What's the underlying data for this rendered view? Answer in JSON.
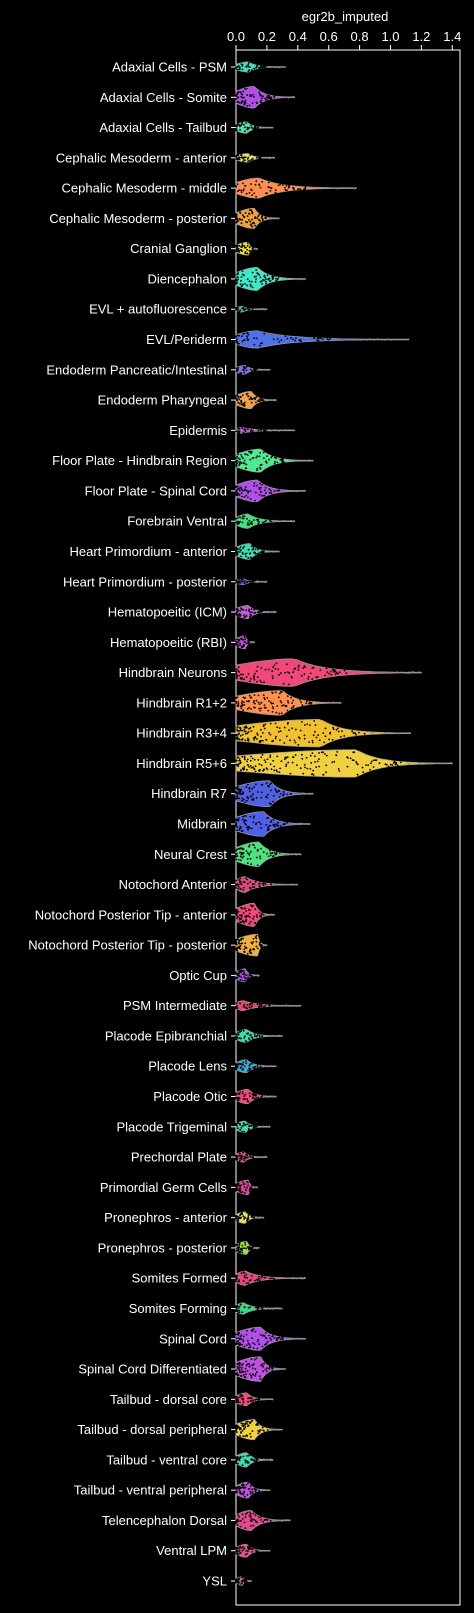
{
  "chart_data": {
    "type": "violin",
    "orientation": "horizontal",
    "xlabel": "egr2b_imputed",
    "xlim": [
      0,
      1.45
    ],
    "xticks": [
      "0.0",
      "0.2",
      "0.4",
      "0.6",
      "0.8",
      "1.0",
      "1.2",
      "1.4"
    ],
    "xtick_values": [
      0,
      0.2,
      0.4,
      0.6,
      0.8,
      1.0,
      1.2,
      1.4
    ],
    "categories": [
      {
        "name": "Adaxial Cells - PSM",
        "max": 0.32,
        "width": 0.35,
        "spread": 0.08,
        "color": "#40e0c0"
      },
      {
        "name": "Adaxial Cells - Somite",
        "max": 0.38,
        "width": 0.75,
        "spread": 0.12,
        "color": "#b050e8"
      },
      {
        "name": "Adaxial Cells - Tailbud",
        "max": 0.24,
        "width": 0.4,
        "spread": 0.07,
        "color": "#50e0a0"
      },
      {
        "name": "Cephalic Mesoderm - anterior",
        "max": 0.25,
        "width": 0.3,
        "spread": 0.08,
        "color": "#e8e070"
      },
      {
        "name": "Cephalic Mesoderm - middle",
        "max": 0.78,
        "width": 0.7,
        "spread": 0.15,
        "color": "#ff8c50"
      },
      {
        "name": "Cephalic Mesoderm - posterior",
        "max": 0.28,
        "width": 0.7,
        "spread": 0.12,
        "color": "#f0a040"
      },
      {
        "name": "Cranial Ganglion",
        "max": 0.14,
        "width": 0.45,
        "spread": 0.08,
        "color": "#e8e040"
      },
      {
        "name": "Diencephalon",
        "max": 0.45,
        "width": 0.8,
        "spread": 0.14,
        "color": "#40e8c8"
      },
      {
        "name": "EVL + autofluorescence",
        "max": 0.2,
        "width": 0.2,
        "spread": 0.04,
        "color": "#40c090"
      },
      {
        "name": "EVL/Periderm",
        "max": 1.12,
        "width": 0.6,
        "spread": 0.14,
        "color": "#5070e8"
      },
      {
        "name": "Endoderm Pancreatic/Intestinal",
        "max": 0.22,
        "width": 0.3,
        "spread": 0.06,
        "color": "#8070e8"
      },
      {
        "name": "Endoderm Pharyngeal",
        "max": 0.26,
        "width": 0.6,
        "spread": 0.1,
        "color": "#f0a050"
      },
      {
        "name": "Epidermis",
        "max": 0.38,
        "width": 0.2,
        "spread": 0.04,
        "color": "#c060e0"
      },
      {
        "name": "Floor Plate - Hindbrain Region",
        "max": 0.5,
        "width": 0.8,
        "spread": 0.16,
        "color": "#50e890"
      },
      {
        "name": "Floor Plate - Spinal Cord",
        "max": 0.45,
        "width": 0.75,
        "spread": 0.14,
        "color": "#b050e8"
      },
      {
        "name": "Forebrain Ventral",
        "max": 0.38,
        "width": 0.5,
        "spread": 0.08,
        "color": "#40e080"
      },
      {
        "name": "Heart Primordium - anterior",
        "max": 0.28,
        "width": 0.55,
        "spread": 0.09,
        "color": "#40d8b0"
      },
      {
        "name": "Heart Primordium - posterior",
        "max": 0.2,
        "width": 0.2,
        "spread": 0.05,
        "color": "#4050c0"
      },
      {
        "name": "Hematopoeitic (ICM)",
        "max": 0.26,
        "width": 0.45,
        "spread": 0.08,
        "color": "#c060d8"
      },
      {
        "name": "Hematopoeitic (RBI)",
        "max": 0.12,
        "width": 0.45,
        "spread": 0.06,
        "color": "#c050e0"
      },
      {
        "name": "Hindbrain Neurons",
        "max": 1.2,
        "width": 0.95,
        "spread": 0.38,
        "color": "#f04878"
      },
      {
        "name": "Hindbrain R1+2",
        "max": 0.68,
        "width": 0.85,
        "spread": 0.3,
        "color": "#ff9050"
      },
      {
        "name": "Hindbrain R3+4",
        "max": 1.13,
        "width": 0.95,
        "spread": 0.55,
        "color": "#f0c030"
      },
      {
        "name": "Hindbrain R5+6",
        "max": 1.4,
        "width": 0.95,
        "spread": 0.78,
        "color": "#f0d040"
      },
      {
        "name": "Hindbrain R7",
        "max": 0.5,
        "width": 0.9,
        "spread": 0.22,
        "color": "#5060e0"
      },
      {
        "name": "Midbrain",
        "max": 0.48,
        "width": 0.85,
        "spread": 0.18,
        "color": "#5060e8"
      },
      {
        "name": "Neural Crest",
        "max": 0.42,
        "width": 0.85,
        "spread": 0.15,
        "color": "#50e080"
      },
      {
        "name": "Notochord Anterior",
        "max": 0.4,
        "width": 0.55,
        "spread": 0.06,
        "color": "#e04880"
      },
      {
        "name": "Notochord Posterior Tip - anterior",
        "max": 0.25,
        "width": 0.8,
        "spread": 0.12,
        "color": "#f04878"
      },
      {
        "name": "Notochord Posterior Tip - posterior",
        "max": 0.2,
        "width": 0.75,
        "spread": 0.14,
        "color": "#f0b040"
      },
      {
        "name": "Optic Cup",
        "max": 0.15,
        "width": 0.45,
        "spread": 0.06,
        "color": "#b050e0"
      },
      {
        "name": "PSM Intermediate",
        "max": 0.42,
        "width": 0.35,
        "spread": 0.05,
        "color": "#e04870"
      },
      {
        "name": "Placode Epibranchial",
        "max": 0.3,
        "width": 0.45,
        "spread": 0.07,
        "color": "#40d8b0"
      },
      {
        "name": "Placode Lens",
        "max": 0.26,
        "width": 0.45,
        "spread": 0.07,
        "color": "#40a8d0"
      },
      {
        "name": "Placode Otic",
        "max": 0.26,
        "width": 0.5,
        "spread": 0.08,
        "color": "#f04878"
      },
      {
        "name": "Placode Trigeminal",
        "max": 0.22,
        "width": 0.4,
        "spread": 0.06,
        "color": "#40d8b0"
      },
      {
        "name": "Prechordal Plate",
        "max": 0.2,
        "width": 0.35,
        "spread": 0.05,
        "color": "#e04870"
      },
      {
        "name": "Primordial Germ Cells",
        "max": 0.14,
        "width": 0.5,
        "spread": 0.08,
        "color": "#e040a0"
      },
      {
        "name": "Pronephros - anterior",
        "max": 0.18,
        "width": 0.4,
        "spread": 0.06,
        "color": "#e8e050"
      },
      {
        "name": "Pronephros - posterior",
        "max": 0.15,
        "width": 0.45,
        "spread": 0.07,
        "color": "#a0e040"
      },
      {
        "name": "Somites Formed",
        "max": 0.45,
        "width": 0.5,
        "spread": 0.06,
        "color": "#e04878"
      },
      {
        "name": "Somites Forming",
        "max": 0.3,
        "width": 0.4,
        "spread": 0.05,
        "color": "#40d880"
      },
      {
        "name": "Spinal Cord",
        "max": 0.45,
        "width": 0.8,
        "spread": 0.16,
        "color": "#b050e8"
      },
      {
        "name": "Spinal Cord Differentiated",
        "max": 0.32,
        "width": 0.85,
        "spread": 0.16,
        "color": "#c050e0"
      },
      {
        "name": "Tailbud - dorsal core",
        "max": 0.24,
        "width": 0.45,
        "spread": 0.07,
        "color": "#f04878"
      },
      {
        "name": "Tailbud - dorsal peripheral",
        "max": 0.3,
        "width": 0.7,
        "spread": 0.12,
        "color": "#f0d040"
      },
      {
        "name": "Tailbud - ventral core",
        "max": 0.24,
        "width": 0.5,
        "spread": 0.07,
        "color": "#40d8b0"
      },
      {
        "name": "Tailbud - ventral peripheral",
        "max": 0.22,
        "width": 0.55,
        "spread": 0.08,
        "color": "#c050e0"
      },
      {
        "name": "Telencephalon Dorsal",
        "max": 0.35,
        "width": 0.7,
        "spread": 0.1,
        "color": "#e04890"
      },
      {
        "name": "Ventral LPM",
        "max": 0.22,
        "width": 0.45,
        "spread": 0.07,
        "color": "#e05090"
      },
      {
        "name": "YSL",
        "max": 0.1,
        "width": 0.3,
        "spread": 0.04,
        "color": "#c080a0"
      }
    ],
    "background": "#000000",
    "axis_color": "#ffffff",
    "point_color": "#000000",
    "legend": "none",
    "grid": false
  }
}
